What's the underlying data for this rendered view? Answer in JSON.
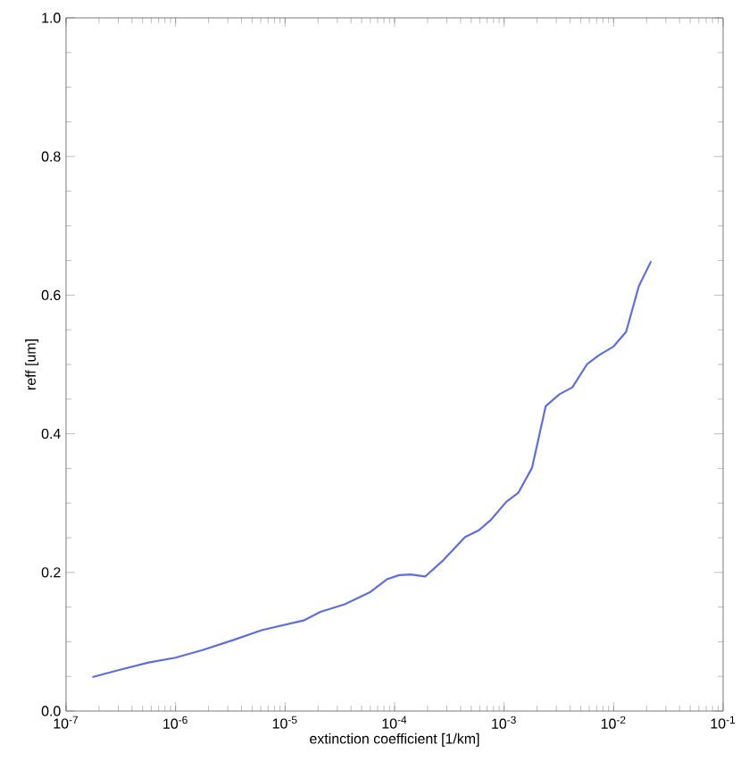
{
  "chart_data": {
    "type": "line",
    "xlabel": "extinction coefficient [1/km]",
    "ylabel": "reff [um]",
    "x": [
      1.74e-07,
      3e-07,
      5.7e-07,
      1e-06,
      1.76e-06,
      3.3e-06,
      6.2e-06,
      1.5e-05,
      2.1e-05,
      3.5e-05,
      5.9e-05,
      8.5e-05,
      0.00011,
      0.00014,
      0.00019,
      0.00028,
      0.00044,
      0.00059,
      0.00076,
      0.00105,
      0.00135,
      0.0018,
      0.0024,
      0.0032,
      0.0042,
      0.0057,
      0.0073,
      0.01,
      0.013,
      0.017,
      0.022
    ],
    "series": [
      {
        "color": "#5f6fd9",
        "values": [
          0.049,
          0.059,
          0.07,
          0.077,
          0.088,
          0.102,
          0.117,
          0.131,
          0.143,
          0.154,
          0.171,
          0.19,
          0.196,
          0.197,
          0.194,
          0.218,
          0.251,
          0.261,
          0.276,
          0.302,
          0.315,
          0.351,
          0.44,
          0.457,
          0.467,
          0.5,
          0.513,
          0.526,
          0.547,
          0.613,
          0.649
        ]
      }
    ],
    "log": "x",
    "xlim": [
      1e-07,
      0.1
    ],
    "ylim": [
      0,
      1.0
    ],
    "xticks": [
      {
        "value": 1e-07,
        "label": "10$^{-7}$"
      },
      {
        "value": 1e-06,
        "label": "10$^{-6}$"
      },
      {
        "value": 1e-05,
        "label": "10$^{-5}$"
      },
      {
        "value": 0.0001,
        "label": "10$^{-4}$"
      },
      {
        "value": 0.001,
        "label": "10$^{-3}$"
      },
      {
        "value": 0.01,
        "label": "10$^{-2}$"
      },
      {
        "value": 0.1,
        "label": "10$^{-1}$"
      }
    ],
    "yticks": [
      {
        "value": 0,
        "label": "0.0"
      },
      0.2,
      0.4,
      0.6,
      0.8,
      {
        "value": 1.0,
        "label": "1.0"
      }
    ],
    "grid": false,
    "marker": "none",
    "line_style": "solid"
  }
}
